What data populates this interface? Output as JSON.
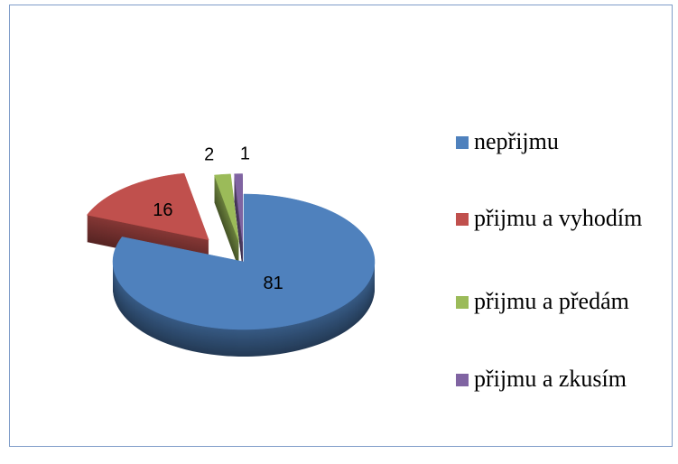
{
  "chart_data": {
    "type": "pie",
    "categories": [
      "nepřijmu",
      "přijmu a vyhodím",
      "přijmu a předám",
      "přijmu a zkusím"
    ],
    "values": [
      81,
      16,
      2,
      1
    ],
    "colors": [
      "#4f81bd",
      "#c0504d",
      "#9bbb59",
      "#8064a2"
    ],
    "legend": "right"
  }
}
